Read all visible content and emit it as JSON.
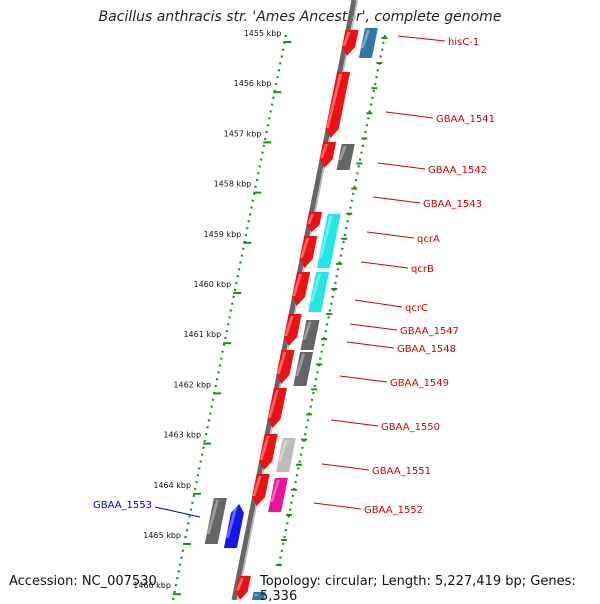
{
  "title": "Bacillus anthracis str. 'Ames Ancestor', complete genome",
  "footer": {
    "accession": "Accession: NC_007530",
    "topology": "Topology: circular; Length: 5,227,419 bp; Genes: 5,336"
  },
  "ruler": {
    "unit": "kbp",
    "ticks": [
      "1455 kbp",
      "1456 kbp",
      "1457 kbp",
      "1458 kbp",
      "1459 kbp",
      "1460 kbp",
      "1461 kbp",
      "1462 kbp",
      "1463 kbp",
      "1464 kbp",
      "1465 kbp",
      "1466 kbp"
    ]
  },
  "colors": {
    "red": "#ee1111",
    "cyan": "#22e6e6",
    "gray": "#666666",
    "lightgray": "#bbbbbb",
    "magenta": "#ee1199",
    "blue": "#1515ee",
    "steelblue": "#3377aa",
    "label_red": "#cc0000",
    "label_blue": "#0000cc",
    "ruler": "#228822",
    "backbone": "#888888"
  },
  "genes": [
    {
      "label": "hisC-1"
    },
    {
      "label": "GBAA_1541"
    },
    {
      "label": "GBAA_1542"
    },
    {
      "label": "GBAA_1543"
    },
    {
      "label": "qcrA"
    },
    {
      "label": "qcrB"
    },
    {
      "label": "qcrC"
    },
    {
      "label": "GBAA_1547"
    },
    {
      "label": "GBAA_1548"
    },
    {
      "label": "GBAA_1549"
    },
    {
      "label": "GBAA_1550"
    },
    {
      "label": "GBAA_1551"
    },
    {
      "label": "GBAA_1552"
    },
    {
      "label": "GBAA_1553"
    }
  ]
}
